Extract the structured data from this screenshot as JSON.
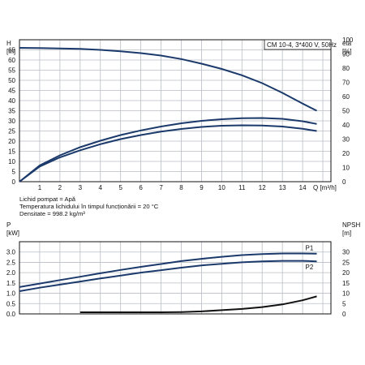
{
  "chart_data": [
    {
      "type": "line",
      "title": "CM 10-4, 3*400 V, 50Hz",
      "xlabel": "Q [m³/h]",
      "left_axis": {
        "name": "H",
        "unit": "[m]"
      },
      "right_axis": {
        "name": "eta",
        "unit": "[%]"
      },
      "xlim": [
        0,
        15.4
      ],
      "ylim_left": [
        0,
        70
      ],
      "ylim_right": [
        0,
        100
      ],
      "x_ticks": [
        "1",
        "2",
        "3",
        "4",
        "5",
        "6",
        "7",
        "8",
        "9",
        "10",
        "11",
        "12",
        "13",
        "14"
      ],
      "y_ticks_left": [
        "0",
        "5",
        "10",
        "15",
        "20",
        "25",
        "30",
        "35",
        "40",
        "45",
        "50",
        "55",
        "60",
        "65"
      ],
      "y_ticks_right": [
        "0",
        "10",
        "20",
        "30",
        "40",
        "50",
        "60",
        "70",
        "80",
        "90",
        "100"
      ],
      "grid": true,
      "notes": [
        "Lichid pompat = Apă",
        "Temperatura lichidului în timpul funcționării = 20 °C",
        "Densitate = 998.2 kg/m³"
      ],
      "series": [
        {
          "axis": "left",
          "color": "#1b3a6b",
          "x": [
            0,
            1,
            2,
            3,
            4,
            5,
            6,
            7,
            8,
            9,
            10,
            11,
            12,
            13,
            14,
            14.7
          ],
          "y": [
            66,
            65.9,
            65.7,
            65.5,
            65,
            64.3,
            63.4,
            62.2,
            60.5,
            58.2,
            55.6,
            52.5,
            48.6,
            43.8,
            38.5,
            35
          ]
        },
        {
          "axis": "left",
          "color": "#1b3a6b",
          "x": [
            0,
            1,
            2,
            3,
            4,
            5,
            6,
            7,
            8,
            9,
            10,
            11,
            12,
            13,
            14,
            14.7
          ],
          "y": [
            0,
            8,
            13,
            17,
            20.2,
            23,
            25.3,
            27.2,
            28.8,
            30,
            30.8,
            31.3,
            31.4,
            31,
            29.8,
            28.5
          ]
        },
        {
          "axis": "left",
          "color": "#1b3a6b",
          "x": [
            0,
            1,
            2,
            3,
            4,
            5,
            6,
            7,
            8,
            9,
            10,
            11,
            12,
            13,
            14,
            14.7
          ],
          "y": [
            0,
            7.5,
            12,
            15.5,
            18.5,
            21,
            23,
            24.7,
            26,
            27,
            27.6,
            27.8,
            27.7,
            27.2,
            26.1,
            25
          ]
        }
      ]
    },
    {
      "type": "line",
      "xlabel": "",
      "left_axis": {
        "name": "P",
        "unit": "[kW]"
      },
      "right_axis": {
        "name": "NPSH",
        "unit": "[m]"
      },
      "xlim": [
        0,
        15.4
      ],
      "ylim_left": [
        0,
        3.5
      ],
      "ylim_right": [
        0,
        35
      ],
      "y_ticks_left": [
        "0.0",
        "0.5",
        "1.0",
        "1.5",
        "2.0",
        "2.5",
        "3.0"
      ],
      "y_ticks_right": [
        "0",
        "5",
        "10",
        "15",
        "20",
        "25",
        "30"
      ],
      "grid": true,
      "series": [
        {
          "name": "P1",
          "axis": "left",
          "color": "#1b3a6b",
          "x": [
            0,
            1,
            2,
            3,
            4,
            5,
            6,
            7,
            8,
            9,
            10,
            11,
            12,
            13,
            14,
            14.7
          ],
          "y": [
            1.3,
            1.47,
            1.64,
            1.8,
            1.97,
            2.13,
            2.28,
            2.42,
            2.56,
            2.67,
            2.77,
            2.85,
            2.9,
            2.93,
            2.93,
            2.92
          ]
        },
        {
          "name": "P2",
          "axis": "left",
          "color": "#1b3a6b",
          "x": [
            0,
            1,
            2,
            3,
            4,
            5,
            6,
            7,
            8,
            9,
            10,
            11,
            12,
            13,
            14,
            14.7
          ],
          "y": [
            1.1,
            1.27,
            1.42,
            1.57,
            1.72,
            1.86,
            2,
            2.12,
            2.24,
            2.35,
            2.43,
            2.5,
            2.55,
            2.57,
            2.57,
            2.55
          ]
        },
        {
          "axis": "right",
          "color": "#111111",
          "x": [
            3,
            4,
            5,
            6,
            7,
            8,
            9,
            10,
            11,
            12,
            13,
            14,
            14.7
          ],
          "y": [
            0.8,
            0.8,
            0.8,
            0.8,
            0.8,
            0.9,
            1.2,
            1.8,
            2.4,
            3.3,
            4.6,
            6.6,
            8.5
          ]
        }
      ]
    }
  ]
}
